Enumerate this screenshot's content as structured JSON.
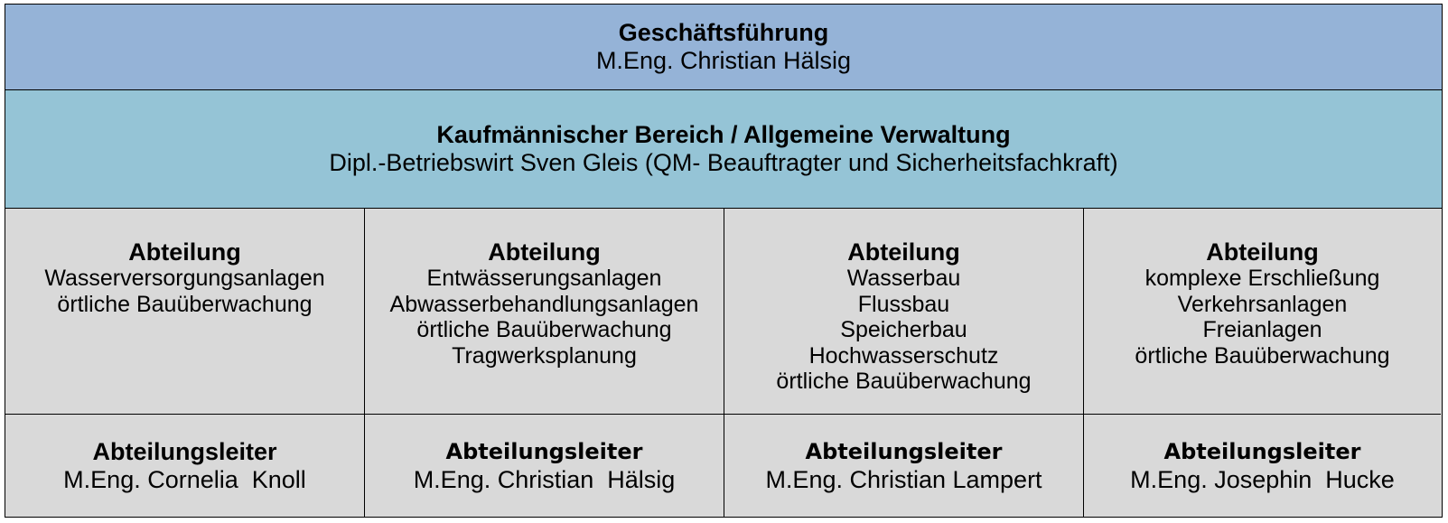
{
  "colors": {
    "management": "#95b3d7",
    "administration": "#95c4d6",
    "departments": "#d9d9d9"
  },
  "management": {
    "title": "Geschäftsführung",
    "name": "M.Eng. Christian Hälsig"
  },
  "administration": {
    "title": "Kaufmännischer Bereich / Allgemeine Verwaltung",
    "name": "Dipl.-Betriebswirt Sven Gleis (QM- Beauftragter und Sicherheitsfachkraft)"
  },
  "departments": [
    {
      "title": "Abteilung",
      "lines": [
        "Wasserversorgungsanlagen",
        "örtliche Bauüberwachung"
      ],
      "lead_title": "Abteilungsleiter",
      "lead_name": "M.Eng. Cornelia  Knoll"
    },
    {
      "title": "Abteilung",
      "lines": [
        "Entwässerungsanlagen",
        "Abwasserbehandlungsanlagen",
        "örtliche Bauüberwachung",
        "Tragwerksplanung"
      ],
      "lead_title": "Abteilungsleiter",
      "lead_name": "M.Eng. Christian  Hälsig"
    },
    {
      "title": "Abteilung",
      "lines": [
        "Wasserbau",
        "Flussbau",
        "Speicherbau",
        "Hochwasserschutz",
        "örtliche Bauüberwachung"
      ],
      "lead_title": "Abteilungsleiter",
      "lead_name": "M.Eng. Christian Lampert"
    },
    {
      "title": "Abteilung",
      "lines": [
        "komplexe Erschließung",
        "Verkehrsanlagen",
        "Freianlagen",
        "örtliche Bauüberwachung"
      ],
      "lead_title": "Abteilungsleiter",
      "lead_name": "M.Eng. Josephin  Hucke"
    }
  ]
}
